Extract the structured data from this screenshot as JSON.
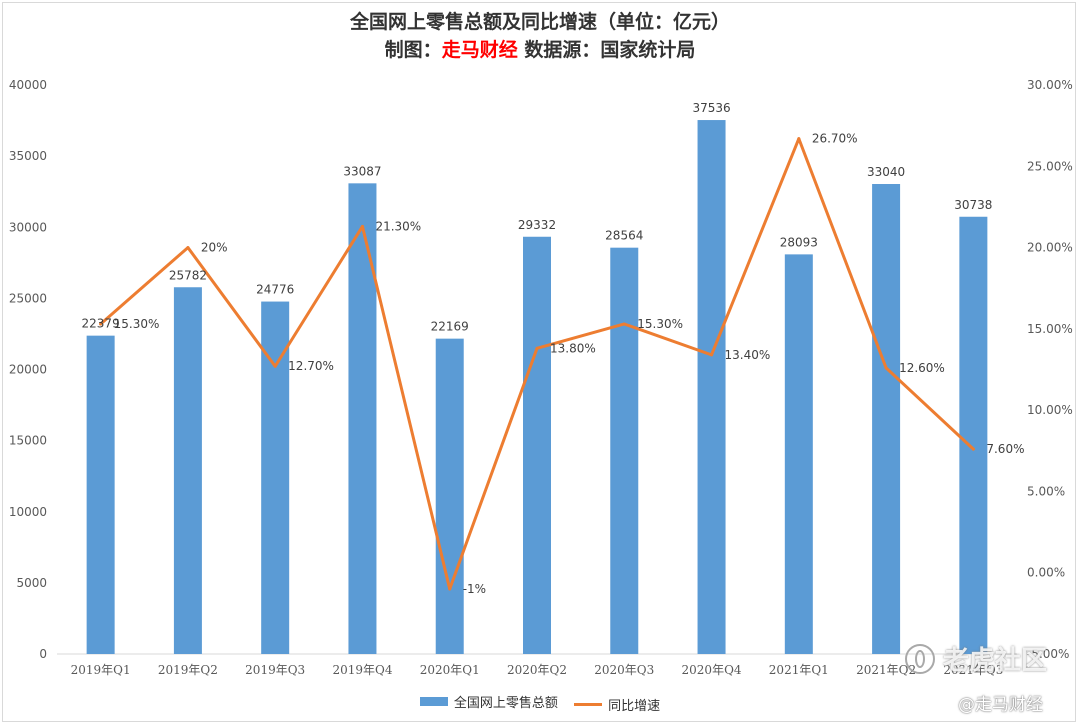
{
  "title": {
    "line1": "全国网上零售总额及同比增速（单位：亿元）",
    "line2_prefix": "制图：",
    "line2_brand": "走马财经",
    "line2_suffix": " 数据源：国家统计局"
  },
  "chart_data": {
    "type": "bar",
    "categories": [
      "2019年Q1",
      "2019年Q2",
      "2019年Q3",
      "2019年Q4",
      "2020年Q1",
      "2020年Q2",
      "2020年Q3",
      "2020年Q4",
      "2021年Q1",
      "2021年Q2",
      "2021年Q3"
    ],
    "series": [
      {
        "name": "全国网上零售总额",
        "type": "bar",
        "axis": "left",
        "color": "#5b9bd5",
        "values": [
          22379,
          25782,
          24776,
          33087,
          22169,
          29332,
          28564,
          37536,
          28093,
          33040,
          30738
        ],
        "labels": [
          "22379",
          "25782",
          "24776",
          "33087",
          "22169",
          "29332",
          "28564",
          "37536",
          "28093",
          "33040",
          "30738"
        ]
      },
      {
        "name": "同比增速",
        "type": "line",
        "axis": "right",
        "color": "#ed7d31",
        "values": [
          15.3,
          20,
          12.7,
          21.3,
          -1,
          13.8,
          15.3,
          13.4,
          26.7,
          12.6,
          7.6
        ],
        "labels": [
          "15.30%",
          "20%",
          "12.70%",
          "21.30%",
          "-1%",
          "13.80%",
          "15.30%",
          "13.40%",
          "26.70%",
          "12.60%",
          "7.60%"
        ]
      }
    ],
    "y_left": {
      "min": 0,
      "max": 40000,
      "step": 5000,
      "ticks": [
        "0",
        "5000",
        "10000",
        "15000",
        "20000",
        "25000",
        "30000",
        "35000",
        "40000"
      ]
    },
    "y_right": {
      "min": -5,
      "max": 30,
      "step": 5,
      "ticks": [
        "-5.00%",
        "0.00%",
        "5.00%",
        "10.00%",
        "15.00%",
        "20.00%",
        "25.00%",
        "30.00%"
      ]
    },
    "grid": false,
    "legend_position": "bottom"
  },
  "legend": {
    "bar_label": "全国网上零售总额",
    "line_label": "同比增速"
  },
  "watermarks": {
    "main": "老虎社区",
    "corner": "@走马财经"
  },
  "colors": {
    "bar": "#5b9bd5",
    "line": "#ed7d31",
    "brand": "#ff0000"
  }
}
